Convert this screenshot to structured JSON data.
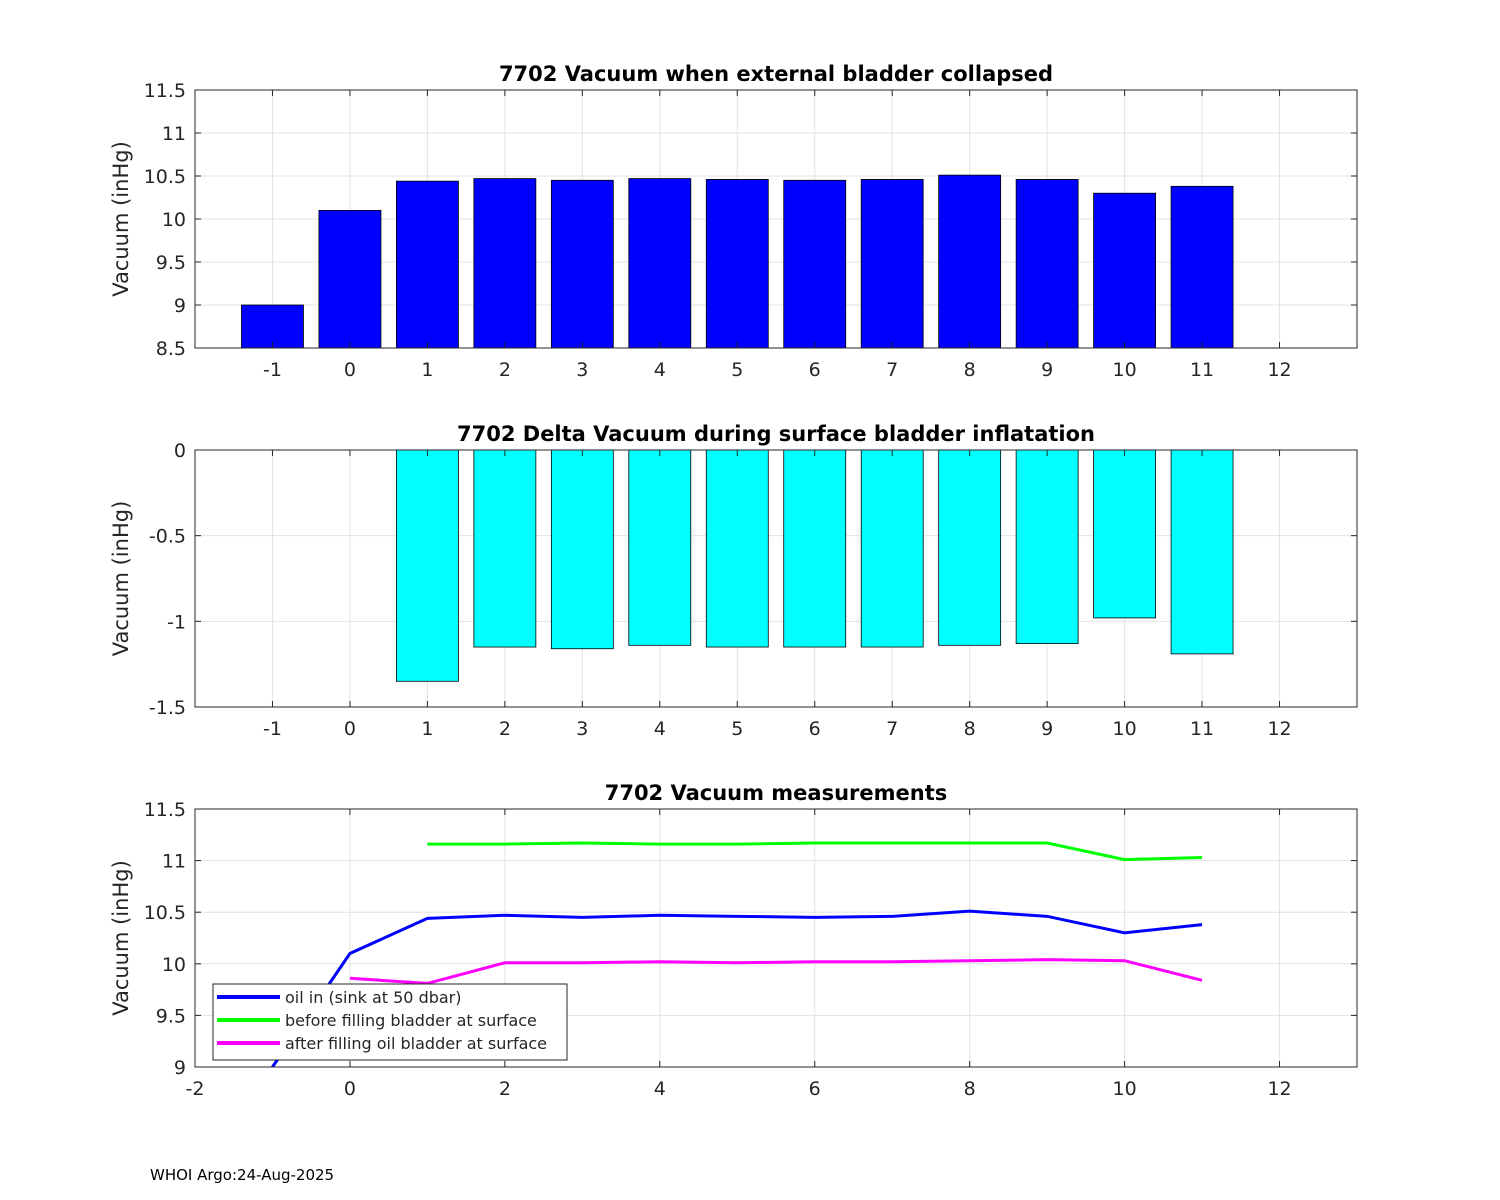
{
  "footer": "WHOI Argo:24-Aug-2025",
  "chart_data": [
    {
      "type": "bar",
      "title": "7702 Vacuum when external bladder collapsed",
      "ylabel": "Vacuum (inHg)",
      "xlabel": "",
      "x": [
        -1,
        0,
        1,
        2,
        3,
        4,
        5,
        6,
        7,
        8,
        9,
        10,
        11
      ],
      "values": [
        9.0,
        10.1,
        10.44,
        10.47,
        10.45,
        10.47,
        10.46,
        10.45,
        10.46,
        10.51,
        10.46,
        10.3,
        10.38
      ],
      "xlim": [
        -2,
        13
      ],
      "ylim": [
        8.5,
        11.5
      ],
      "xticks": [
        -1,
        0,
        1,
        2,
        3,
        4,
        5,
        6,
        7,
        8,
        9,
        10,
        11,
        12
      ],
      "yticks": [
        8.5,
        9,
        9.5,
        10,
        10.5,
        11,
        11.5
      ],
      "ytick_labels": [
        "8.5",
        "9",
        "9.5",
        "10",
        "10.5",
        "11",
        "11.5"
      ],
      "color": "#0000ff",
      "grid": true
    },
    {
      "type": "bar",
      "title": "7702 Delta Vacuum during surface bladder inflatation",
      "ylabel": "Vacuum (inHg)",
      "xlabel": "",
      "x": [
        1,
        2,
        3,
        4,
        5,
        6,
        7,
        8,
        9,
        10,
        11
      ],
      "values": [
        -1.35,
        -1.15,
        -1.16,
        -1.14,
        -1.15,
        -1.15,
        -1.15,
        -1.14,
        -1.13,
        -0.98,
        -1.19
      ],
      "xlim": [
        -2,
        13
      ],
      "ylim": [
        -1.5,
        0
      ],
      "xticks": [
        -1,
        0,
        1,
        2,
        3,
        4,
        5,
        6,
        7,
        8,
        9,
        10,
        11,
        12
      ],
      "yticks": [
        -1.5,
        -1,
        -0.5,
        0
      ],
      "ytick_labels": [
        "-1.5",
        "-1",
        "-0.5",
        "0"
      ],
      "color": "#00ffff",
      "grid": true
    },
    {
      "type": "line",
      "title": "7702 Vacuum measurements",
      "ylabel": "Vacuum (inHg)",
      "xlabel": "",
      "xlim": [
        -2,
        13
      ],
      "ylim": [
        9,
        11.5
      ],
      "xticks": [
        -2,
        0,
        2,
        4,
        6,
        8,
        10,
        12
      ],
      "yticks": [
        9,
        9.5,
        10,
        10.5,
        11,
        11.5
      ],
      "ytick_labels": [
        "9",
        "9.5",
        "10",
        "10.5",
        "11",
        "11.5"
      ],
      "legend_position": "bottom-left",
      "grid": true,
      "series": [
        {
          "name": "oil in (sink at 50 dbar)",
          "color": "#0000ff",
          "x": [
            -1,
            0,
            1,
            2,
            3,
            4,
            5,
            6,
            7,
            8,
            9,
            10,
            11
          ],
          "values": [
            9.0,
            10.1,
            10.44,
            10.47,
            10.45,
            10.47,
            10.46,
            10.45,
            10.46,
            10.51,
            10.46,
            10.3,
            10.38
          ]
        },
        {
          "name": "before filling bladder at surface",
          "color": "#00ff00",
          "x": [
            1,
            2,
            3,
            4,
            5,
            6,
            7,
            8,
            9,
            10,
            11
          ],
          "values": [
            11.16,
            11.16,
            11.17,
            11.16,
            11.16,
            11.17,
            11.17,
            11.17,
            11.17,
            11.01,
            11.03
          ]
        },
        {
          "name": "after filling oil bladder at surface",
          "color": "#ff00ff",
          "x": [
            0,
            1,
            2,
            3,
            4,
            5,
            6,
            7,
            8,
            9,
            10,
            11
          ],
          "values": [
            9.86,
            9.81,
            10.01,
            10.01,
            10.02,
            10.01,
            10.02,
            10.02,
            10.03,
            10.04,
            10.03,
            9.84
          ]
        }
      ]
    }
  ]
}
